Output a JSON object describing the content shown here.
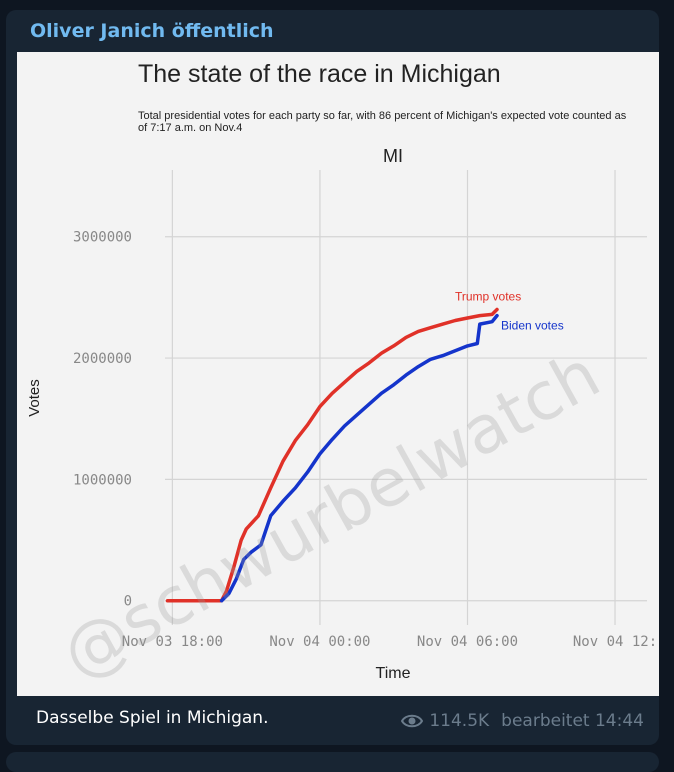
{
  "message": {
    "sender": "Oliver Janich öffentlich",
    "caption": "Dasselbe Spiel in Michigan.",
    "views": "114.5K",
    "edited": "bearbeitet 14:44"
  },
  "colors": {
    "background": "#0e1621",
    "bubble": "#182533",
    "sender": "#71baf0",
    "meta": "#6b7c8c",
    "trump": "#e03128",
    "biden": "#1434cb"
  },
  "chart_data": {
    "type": "line",
    "title": "The state of the race in Michigan",
    "subtitle": "Total presidential votes for each party so far, with 86 percent of Michigan's expected vote counted as of 7:17 a.m. on Nov.4",
    "panel_label": "MI",
    "xlabel": "Time",
    "ylabel": "Votes",
    "watermark": "@schwurbelwatch",
    "x_ticks": [
      "Nov 03 18:00",
      "Nov 04 00:00",
      "Nov 04 06:00",
      "Nov 04 12:"
    ],
    "x_tick_hours": [
      0,
      6,
      12,
      18
    ],
    "y_ticks": [
      0,
      1000000,
      2000000,
      3000000
    ],
    "y_tick_labels": [
      "0",
      "1000000",
      "2000000",
      "3000000"
    ],
    "xlim_hours": [
      -0.3,
      19.3
    ],
    "ylim": [
      -200000,
      3550000
    ],
    "grid": true,
    "series": [
      {
        "name": "Trump votes",
        "color": "#e03128",
        "x_hours": [
          -0.2,
          1.0,
          2.0,
          2.2,
          2.5,
          2.8,
          3.0,
          3.5,
          4.0,
          4.5,
          5.0,
          5.5,
          6.0,
          6.5,
          7.0,
          7.5,
          8.0,
          8.5,
          9.0,
          9.5,
          10.0,
          10.5,
          11.0,
          11.5,
          12.0,
          12.5,
          13.0,
          13.2
        ],
        "y": [
          0,
          0,
          0,
          80000,
          280000,
          500000,
          590000,
          700000,
          930000,
          1150000,
          1320000,
          1450000,
          1600000,
          1710000,
          1800000,
          1890000,
          1960000,
          2040000,
          2100000,
          2170000,
          2220000,
          2250000,
          2280000,
          2310000,
          2330000,
          2350000,
          2360000,
          2400000
        ]
      },
      {
        "name": "Biden votes",
        "color": "#1434cb",
        "x_hours": [
          2.0,
          2.3,
          2.6,
          2.9,
          3.2,
          3.6,
          4.0,
          4.5,
          5.0,
          5.5,
          6.0,
          6.5,
          7.0,
          7.5,
          8.0,
          8.5,
          9.0,
          9.5,
          10.0,
          10.5,
          11.0,
          11.5,
          12.0,
          12.4,
          12.5,
          13.0,
          13.2
        ],
        "y": [
          0,
          60000,
          180000,
          340000,
          400000,
          460000,
          700000,
          820000,
          930000,
          1060000,
          1210000,
          1330000,
          1440000,
          1530000,
          1620000,
          1710000,
          1780000,
          1860000,
          1930000,
          1990000,
          2020000,
          2060000,
          2100000,
          2120000,
          2280000,
          2300000,
          2350000
        ]
      }
    ]
  }
}
